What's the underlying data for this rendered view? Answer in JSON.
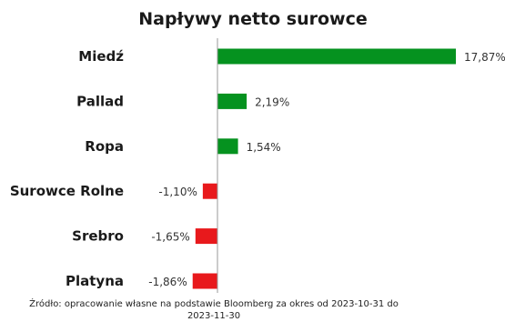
{
  "chart_data": {
    "type": "bar",
    "orientation": "horizontal",
    "title": "Napływy netto surowce",
    "categories": [
      "Miedź",
      "Pallad",
      "Ropa",
      "Surowce Rolne",
      "Srebro",
      "Platyna"
    ],
    "values": [
      17.87,
      2.19,
      1.54,
      -1.1,
      -1.65,
      -1.86
    ],
    "value_labels": [
      "17,87%",
      "2,19%",
      "1,54%",
      "-1,10%",
      "-1,65%",
      "-1,86%"
    ],
    "unit": "%",
    "xlim": [
      -2.2,
      18.0
    ],
    "grid": false,
    "legend": "none",
    "colors": {
      "positive": "#05921f",
      "negative": "#e8191c",
      "axis": "#999999"
    }
  },
  "source": {
    "line1": "Źródło: opracowanie własne na podstawie Bloomberg za okres od 2023-10-31 do",
    "line2": "2023-11-30"
  }
}
